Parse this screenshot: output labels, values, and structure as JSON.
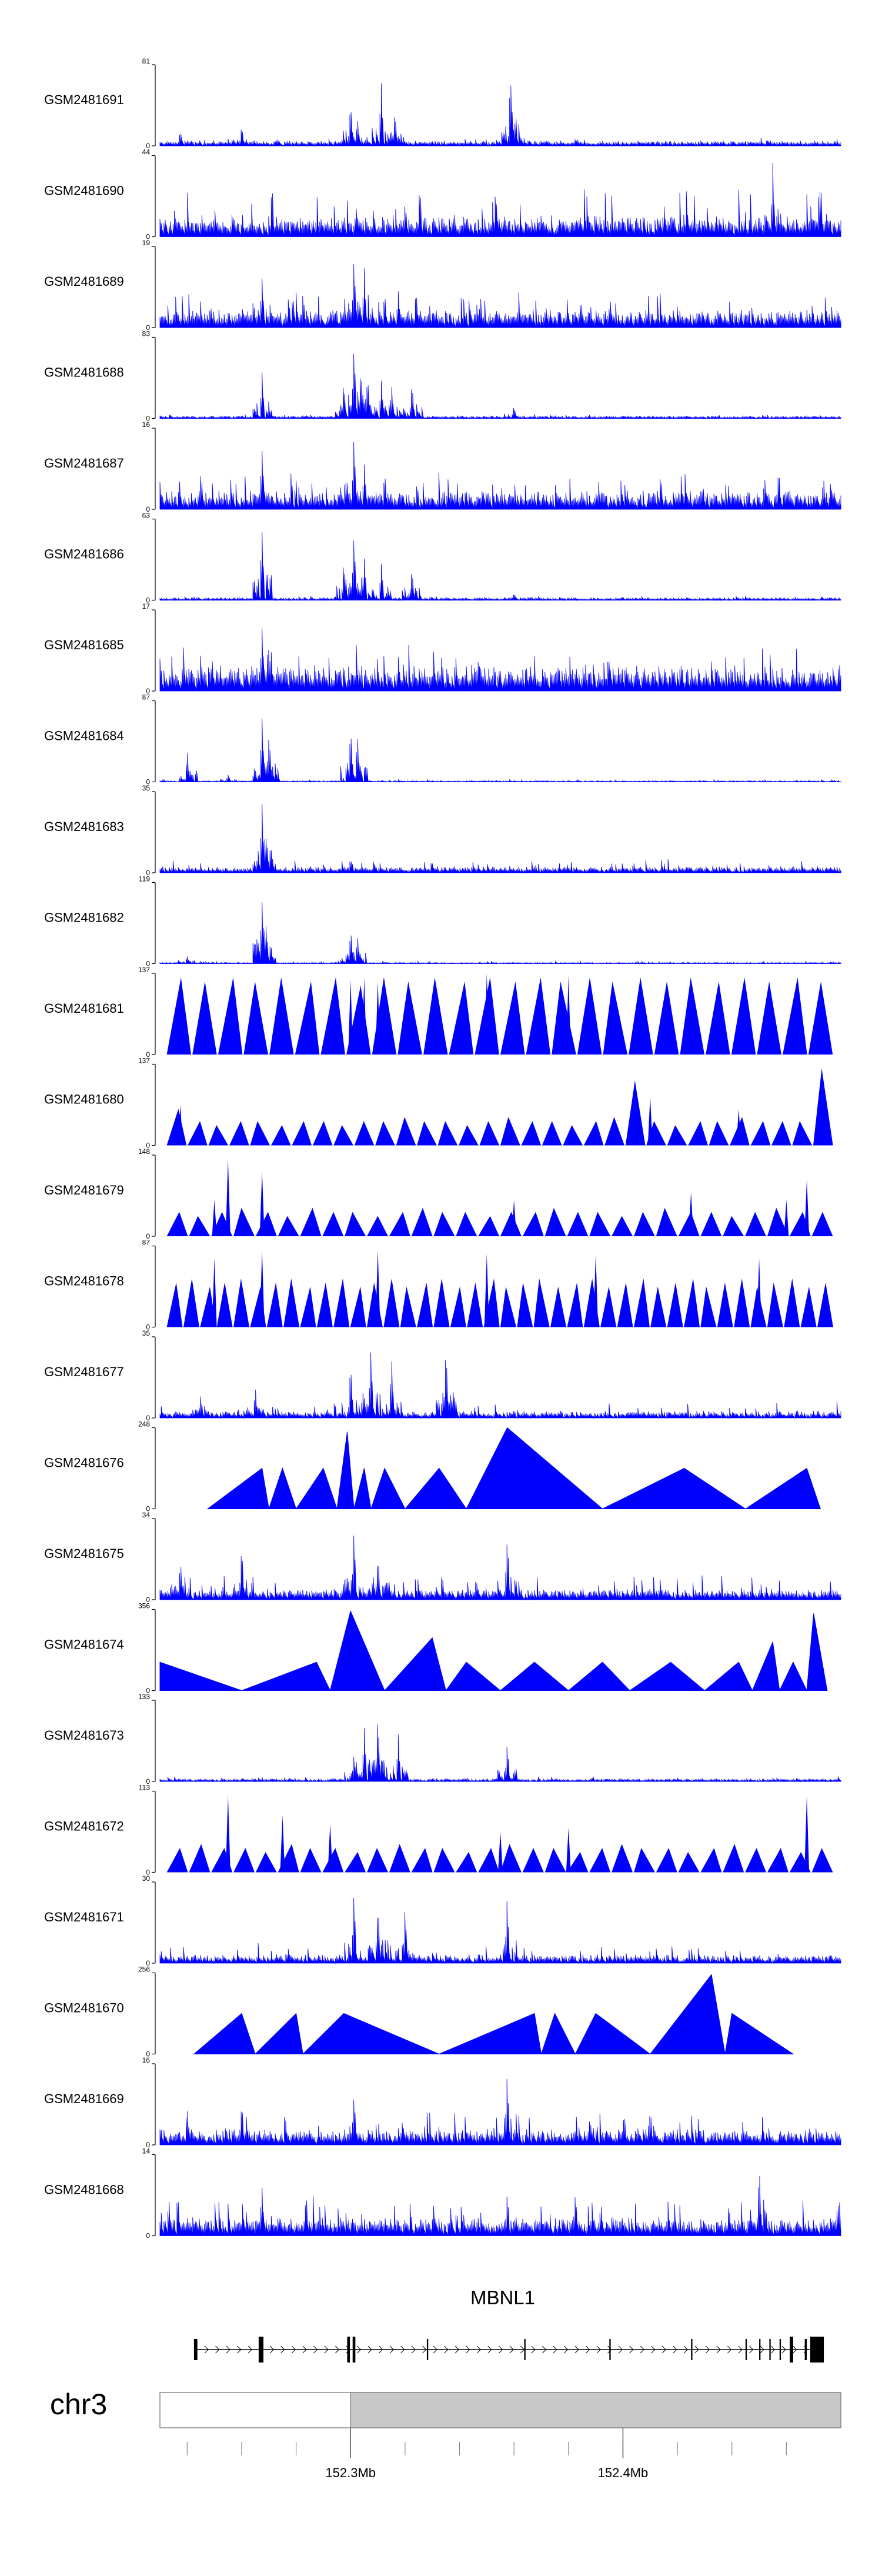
{
  "figure": {
    "colors": {
      "signal": "#0000ff",
      "axis": "#000000",
      "gene": "#000000",
      "ideogram_band": "#c8c8c8"
    }
  },
  "chart_data": {
    "type": "area",
    "title": "",
    "xlabel": "chr3",
    "x_range_mb": [
      152.23,
      152.48
    ],
    "x_ticks": [
      {
        "value": 152.3,
        "label": "152.3Mb"
      },
      {
        "value": 152.4,
        "label": "152.4Mb"
      }
    ],
    "tracks": [
      {
        "name": "GSM2481691",
        "ymin": 0,
        "ymax": 81,
        "style": "bars",
        "baseline": 0.04,
        "noise": 0.06,
        "peaks": [
          [
            0.28,
            0.55
          ],
          [
            0.29,
            0.35
          ],
          [
            0.325,
            0.78
          ],
          [
            0.345,
            0.5
          ],
          [
            0.515,
            1.0
          ],
          [
            0.12,
            0.25
          ],
          [
            0.52,
            0.3
          ],
          [
            0.03,
            0.2
          ]
        ]
      },
      {
        "name": "GSM2481690",
        "ymin": 0,
        "ymax": 44,
        "style": "bars",
        "baseline": 0.12,
        "noise": 0.5,
        "peaks": [
          [
            0.9,
            0.95
          ],
          [
            0.97,
            0.8
          ],
          [
            0.36,
            0.5
          ],
          [
            0.74,
            0.45
          ]
        ]
      },
      {
        "name": "GSM2481689",
        "ymin": 0,
        "ymax": 19,
        "style": "bars",
        "baseline": 0.12,
        "noise": 0.3,
        "peaks": [
          [
            0.15,
            0.7
          ],
          [
            0.285,
            0.95
          ],
          [
            0.3,
            0.8
          ],
          [
            0.33,
            0.5
          ],
          [
            0.35,
            0.45
          ]
        ]
      },
      {
        "name": "GSM2481688",
        "ymin": 0,
        "ymax": 83,
        "style": "bars",
        "baseline": 0.02,
        "noise": 0.03,
        "peaks": [
          [
            0.15,
            0.6
          ],
          [
            0.27,
            0.5
          ],
          [
            0.285,
            1.0
          ],
          [
            0.295,
            0.7
          ],
          [
            0.305,
            0.55
          ],
          [
            0.325,
            0.5
          ],
          [
            0.34,
            0.45
          ],
          [
            0.37,
            0.5
          ],
          [
            0.52,
            0.18
          ]
        ]
      },
      {
        "name": "GSM2481687",
        "ymin": 0,
        "ymax": 16,
        "style": "bars",
        "baseline": 0.12,
        "noise": 0.35,
        "peaks": [
          [
            0.15,
            0.85
          ],
          [
            0.285,
            0.95
          ],
          [
            0.3,
            0.6
          ],
          [
            0.33,
            0.5
          ],
          [
            0.0,
            0.4
          ]
        ]
      },
      {
        "name": "GSM2481686",
        "ymin": 0,
        "ymax": 63,
        "style": "bars",
        "baseline": 0.02,
        "noise": 0.03,
        "peaks": [
          [
            0.15,
            0.95
          ],
          [
            0.27,
            0.5
          ],
          [
            0.285,
            0.85
          ],
          [
            0.3,
            0.55
          ],
          [
            0.325,
            0.5
          ],
          [
            0.37,
            0.45
          ],
          [
            0.52,
            0.1
          ]
        ]
      },
      {
        "name": "GSM2481685",
        "ymin": 0,
        "ymax": 17,
        "style": "bars",
        "baseline": 0.18,
        "noise": 0.4,
        "peaks": [
          [
            0.15,
            0.95
          ],
          [
            0.16,
            0.6
          ],
          [
            0.35,
            0.5
          ]
        ]
      },
      {
        "name": "GSM2481684",
        "ymin": 0,
        "ymax": 87,
        "style": "bars",
        "baseline": 0.01,
        "noise": 0.02,
        "peaks": [
          [
            0.04,
            0.4
          ],
          [
            0.15,
            0.9
          ],
          [
            0.16,
            0.7
          ],
          [
            0.28,
            0.7
          ],
          [
            0.29,
            0.65
          ],
          [
            0.1,
            0.1
          ]
        ]
      },
      {
        "name": "GSM2481683",
        "ymin": 0,
        "ymax": 35,
        "style": "bars",
        "baseline": 0.04,
        "noise": 0.12,
        "peaks": [
          [
            0.15,
            0.9
          ],
          [
            0.155,
            0.6
          ],
          [
            0.28,
            0.2
          ]
        ]
      },
      {
        "name": "GSM2481682",
        "ymin": 0,
        "ymax": 119,
        "style": "bars",
        "baseline": 0.01,
        "noise": 0.02,
        "peaks": [
          [
            0.15,
            0.9
          ],
          [
            0.155,
            0.7
          ],
          [
            0.28,
            0.45
          ],
          [
            0.29,
            0.4
          ],
          [
            0.04,
            0.12
          ]
        ]
      },
      {
        "name": "GSM2481681",
        "ymin": 0,
        "ymax": 137,
        "style": "triangles",
        "seed": 11,
        "count": 26,
        "heights": [
          0.95,
          0.9,
          0.95,
          0.9,
          0.95,
          0.9,
          0.95,
          0.85,
          0.95,
          0.9,
          0.95,
          0.9,
          0.95,
          0.9,
          0.95,
          0.9,
          0.95,
          0.9,
          0.95,
          0.9,
          0.95,
          0.9,
          0.95,
          0.9,
          0.95,
          0.9
        ],
        "spikes": [
          [
            0.28,
            0.92
          ],
          [
            0.3,
            0.95
          ],
          [
            0.32,
            0.9
          ],
          [
            0.33,
            0.95
          ],
          [
            0.48,
            1.0
          ],
          [
            0.6,
            0.97
          ]
        ]
      },
      {
        "name": "GSM2481680",
        "ymin": 0,
        "ymax": 137,
        "style": "triangles",
        "seed": 5,
        "count": 32,
        "heights": [
          0.45,
          0.3,
          0.25,
          0.3,
          0.3,
          0.25,
          0.3,
          0.3,
          0.25,
          0.3,
          0.3,
          0.35,
          0.3,
          0.3,
          0.25,
          0.3,
          0.35,
          0.3,
          0.3,
          0.25,
          0.3,
          0.35,
          0.8,
          0.3,
          0.25,
          0.3,
          0.3,
          0.35,
          0.3,
          0.3,
          0.3,
          0.95
        ],
        "spikes": [
          [
            0.03,
            0.5
          ],
          [
            0.72,
            0.6
          ],
          [
            0.85,
            0.45
          ]
        ]
      },
      {
        "name": "GSM2481679",
        "ymin": 0,
        "ymax": 148,
        "style": "triangles",
        "seed": 7,
        "count": 30,
        "heights": [
          0.3,
          0.25,
          0.3,
          0.35,
          0.3,
          0.25,
          0.35,
          0.3,
          0.3,
          0.25,
          0.3,
          0.35,
          0.3,
          0.3,
          0.25,
          0.3,
          0.3,
          0.35,
          0.3,
          0.3,
          0.25,
          0.3,
          0.35,
          0.3,
          0.3,
          0.25,
          0.3,
          0.35,
          0.3,
          0.3
        ],
        "spikes": [
          [
            0.1,
            0.95
          ],
          [
            0.15,
            0.8
          ],
          [
            0.08,
            0.45
          ],
          [
            0.52,
            0.45
          ],
          [
            0.78,
            0.55
          ],
          [
            0.95,
            0.7
          ],
          [
            0.92,
            0.45
          ]
        ]
      },
      {
        "name": "GSM2481678",
        "ymin": 0,
        "ymax": 87,
        "style": "triangles",
        "seed": 9,
        "count": 40,
        "heights": [
          0.55,
          0.6,
          0.5,
          0.55,
          0.6,
          0.5,
          0.55,
          0.6,
          0.5,
          0.55,
          0.6,
          0.5,
          0.55,
          0.6,
          0.5,
          0.55,
          0.6,
          0.5,
          0.55,
          0.6,
          0.5,
          0.55,
          0.6,
          0.5,
          0.55,
          0.6,
          0.5,
          0.55,
          0.6,
          0.5,
          0.55,
          0.6,
          0.5,
          0.55,
          0.6,
          0.5,
          0.55,
          0.6,
          0.5,
          0.55
        ],
        "spikes": [
          [
            0.15,
            0.95
          ],
          [
            0.32,
            0.95
          ],
          [
            0.48,
            0.9
          ],
          [
            0.64,
            0.9
          ],
          [
            0.08,
            0.85
          ],
          [
            0.88,
            0.85
          ]
        ]
      },
      {
        "name": "GSM2481677",
        "ymin": 0,
        "ymax": 35,
        "style": "bars",
        "baseline": 0.04,
        "noise": 0.15,
        "peaks": [
          [
            0.28,
            0.7
          ],
          [
            0.31,
            0.9
          ],
          [
            0.34,
            0.85
          ],
          [
            0.42,
            0.95
          ],
          [
            0.06,
            0.35
          ],
          [
            0.14,
            0.4
          ]
        ]
      },
      {
        "name": "GSM2481676",
        "ymin": 0,
        "ymax": 248,
        "style": "polygon",
        "points": [
          [
            0.07,
            0
          ],
          [
            0.15,
            0.5
          ],
          [
            0.16,
            0
          ],
          [
            0.18,
            0.5
          ],
          [
            0.2,
            0
          ],
          [
            0.24,
            0.5
          ],
          [
            0.26,
            0
          ],
          [
            0.275,
            0.95
          ],
          [
            0.285,
            0
          ],
          [
            0.3,
            0.5
          ],
          [
            0.31,
            0
          ],
          [
            0.33,
            0.5
          ],
          [
            0.36,
            0
          ],
          [
            0.41,
            0.5
          ],
          [
            0.45,
            0
          ],
          [
            0.51,
            1.0
          ],
          [
            0.65,
            0
          ],
          [
            0.77,
            0.5
          ],
          [
            0.86,
            0
          ],
          [
            0.95,
            0.5
          ],
          [
            0.97,
            0
          ]
        ]
      },
      {
        "name": "GSM2481675",
        "ymin": 0,
        "ymax": 34,
        "style": "bars",
        "baseline": 0.06,
        "noise": 0.25,
        "peaks": [
          [
            0.285,
            0.9
          ],
          [
            0.12,
            0.7
          ],
          [
            0.51,
            0.9
          ],
          [
            0.32,
            0.6
          ],
          [
            0.03,
            0.55
          ]
        ]
      },
      {
        "name": "GSM2481674",
        "ymin": 0,
        "ymax": 356,
        "style": "polygon",
        "points": [
          [
            0.0,
            0
          ],
          [
            0.0,
            0.35
          ],
          [
            0.12,
            0
          ],
          [
            0.23,
            0.35
          ],
          [
            0.25,
            0
          ],
          [
            0.28,
            0.98
          ],
          [
            0.33,
            0
          ],
          [
            0.4,
            0.65
          ],
          [
            0.42,
            0
          ],
          [
            0.45,
            0.35
          ],
          [
            0.5,
            0
          ],
          [
            0.55,
            0.35
          ],
          [
            0.6,
            0
          ],
          [
            0.65,
            0.35
          ],
          [
            0.69,
            0
          ],
          [
            0.75,
            0.35
          ],
          [
            0.8,
            0
          ],
          [
            0.85,
            0.35
          ],
          [
            0.87,
            0
          ],
          [
            0.9,
            0.6
          ],
          [
            0.91,
            0
          ],
          [
            0.93,
            0.35
          ],
          [
            0.95,
            0
          ],
          [
            0.96,
            0.95
          ],
          [
            0.98,
            0
          ]
        ]
      },
      {
        "name": "GSM2481673",
        "ymin": 0,
        "ymax": 133,
        "style": "bars",
        "baseline": 0.02,
        "noise": 0.04,
        "peaks": [
          [
            0.285,
            0.35
          ],
          [
            0.3,
            0.7
          ],
          [
            0.32,
            0.95
          ],
          [
            0.35,
            0.6
          ],
          [
            0.51,
            0.5
          ]
        ]
      },
      {
        "name": "GSM2481672",
        "ymin": 0,
        "ymax": 113,
        "style": "triangles",
        "seed": 13,
        "count": 30,
        "heights": [
          0.3,
          0.35,
          0.3,
          0.3,
          0.25,
          0.35,
          0.3,
          0.3,
          0.25,
          0.3,
          0.35,
          0.3,
          0.3,
          0.25,
          0.3,
          0.35,
          0.3,
          0.3,
          0.25,
          0.3,
          0.35,
          0.3,
          0.3,
          0.25,
          0.3,
          0.35,
          0.3,
          0.3,
          0.25,
          0.3
        ],
        "spikes": [
          [
            0.1,
            0.95
          ],
          [
            0.18,
            0.7
          ],
          [
            0.25,
            0.6
          ],
          [
            0.95,
            0.95
          ],
          [
            0.5,
            0.5
          ],
          [
            0.6,
            0.55
          ]
        ]
      },
      {
        "name": "GSM2481671",
        "ymin": 0,
        "ymax": 30,
        "style": "bars",
        "baseline": 0.05,
        "noise": 0.2,
        "peaks": [
          [
            0.285,
            0.9
          ],
          [
            0.32,
            0.85
          ],
          [
            0.36,
            0.7
          ],
          [
            0.51,
            0.9
          ]
        ]
      },
      {
        "name": "GSM2481670",
        "ymin": 0,
        "ymax": 256,
        "style": "polygon",
        "points": [
          [
            0.05,
            0
          ],
          [
            0.12,
            0.5
          ],
          [
            0.14,
            0
          ],
          [
            0.2,
            0.5
          ],
          [
            0.21,
            0
          ],
          [
            0.27,
            0.5
          ],
          [
            0.41,
            0
          ],
          [
            0.55,
            0.5
          ],
          [
            0.56,
            0
          ],
          [
            0.58,
            0.5
          ],
          [
            0.61,
            0
          ],
          [
            0.64,
            0.5
          ],
          [
            0.72,
            0
          ],
          [
            0.81,
            0.98
          ],
          [
            0.83,
            0
          ],
          [
            0.84,
            0.5
          ],
          [
            0.93,
            0
          ]
        ]
      },
      {
        "name": "GSM2481669",
        "ymin": 0,
        "ymax": 16,
        "style": "bars",
        "baseline": 0.1,
        "noise": 0.3,
        "peaks": [
          [
            0.51,
            0.95
          ],
          [
            0.285,
            0.7
          ],
          [
            0.12,
            0.6
          ],
          [
            0.04,
            0.55
          ]
        ]
      },
      {
        "name": "GSM2481668",
        "ymin": 0,
        "ymax": 14,
        "style": "bars",
        "baseline": 0.12,
        "noise": 0.35,
        "peaks": [
          [
            0.88,
            0.95
          ],
          [
            0.15,
            0.7
          ],
          [
            0.51,
            0.6
          ],
          [
            0.61,
            0.65
          ]
        ]
      }
    ],
    "gene": {
      "name": "MBNL1",
      "strand": "+",
      "exons": [
        {
          "start": 0.05,
          "end": 0.055,
          "tall": false
        },
        {
          "start": 0.145,
          "end": 0.152,
          "tall": true
        },
        {
          "start": 0.275,
          "end": 0.279,
          "tall": true
        },
        {
          "start": 0.283,
          "end": 0.287,
          "tall": true
        },
        {
          "start": 0.392,
          "end": 0.394,
          "tall": false
        },
        {
          "start": 0.535,
          "end": 0.537,
          "tall": false
        },
        {
          "start": 0.66,
          "end": 0.662,
          "tall": false
        },
        {
          "start": 0.78,
          "end": 0.782,
          "tall": false
        },
        {
          "start": 0.86,
          "end": 0.862,
          "tall": false
        },
        {
          "start": 0.88,
          "end": 0.882,
          "tall": false
        },
        {
          "start": 0.895,
          "end": 0.897,
          "tall": false
        },
        {
          "start": 0.91,
          "end": 0.912,
          "tall": false
        },
        {
          "start": 0.925,
          "end": 0.93,
          "tall": true
        },
        {
          "start": 0.947,
          "end": 0.95,
          "tall": false
        },
        {
          "start": 0.955,
          "end": 0.975,
          "tall": true
        }
      ]
    },
    "chromosome": {
      "label": "chr3"
    }
  }
}
